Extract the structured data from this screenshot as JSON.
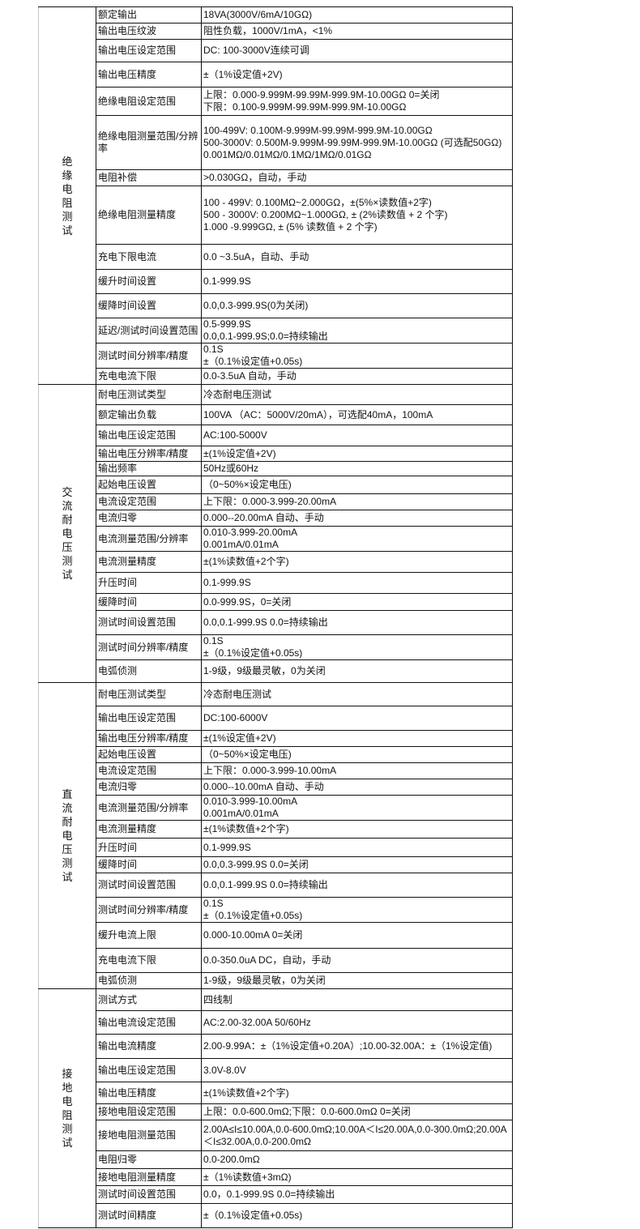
{
  "sections": [
    {
      "label": "绝缘电阻测试",
      "rows": [
        {
          "name": "额定输出",
          "value": "18VA(3000V/6mA/10GΩ)"
        },
        {
          "name": "输出电压纹波",
          "value": "阻性负载，1000V/1mA，<1%"
        },
        {
          "name": "输出电压设定范围",
          "value": "DC: 100-3000V连续可调"
        },
        {
          "name": "输出电压精度",
          "value": "±（1%设定值+2V)"
        },
        {
          "name": "绝缘电阻设定范围",
          "value": "上限：0.000-9.999M-99.99M-999.9M-10.00GΩ 0=关闭\n下限：0.100-9.999M-99.99M-999.9M-10.00GΩ"
        },
        {
          "name": "绝缘电阻测量范围/分辨率",
          "value": "100-499V: 0.100M-9.999M-99.99M-999.9M-10.00GΩ\n500-3000V: 0.500M-9.999M-99.99M-999.9M-10.00GΩ (可选配50GΩ)\n0.001MΩ/0.01MΩ/0.1MΩ/1MΩ/0.01GΩ"
        },
        {
          "name": "电阻补偿",
          "value": ">0.030GΩ，自动，手动"
        },
        {
          "name": "绝缘电阻测量精度",
          "value": "100 - 499V: 0.100MΩ~2.000GΩ，±(5%×读数值+2字)\n500 - 3000V: 0.200MΩ~1.000GΩ, ± (2%读数值 + 2 个字)\n 1.000 -9.999GΩ, ± (5% 读数值 + 2 个字)"
        },
        {
          "name": "充电下限电流",
          "value": "0.0 ~3.5uA，自动、手动"
        },
        {
          "name": "缓升时间设置",
          "value": "0.1-999.9S"
        },
        {
          "name": "缓降时间设置",
          "value": "0.0,0.3-999.9S(0为关闭)"
        },
        {
          "name": "延迟/测试时间设置范围",
          "value": "0.5-999.9S\n0.0,0.1-999.9S;0.0=持续输出"
        },
        {
          "name": "测试时间分辨率/精度",
          "value": "0.1S\n±（0.1%设定值+0.05s)"
        },
        {
          "name": "充电电流下限",
          "value": "0.0-3.5uA 自动，手动"
        }
      ]
    },
    {
      "label": "交流耐电压测试",
      "rows": [
        {
          "name": "耐电压测试类型",
          "value": "冷态耐电压测试"
        },
        {
          "name": "额定输出负载",
          "value": "100VA （AC：5000V/20mA），可选配40mA，100mA"
        },
        {
          "name": "输出电压设定范围",
          "value": "AC:100-5000V"
        },
        {
          "name": "输出电压分辨率/精度",
          "value": "±(1%设定值+2V)"
        },
        {
          "name": "输出频率",
          "value": " 50Hz或60Hz"
        },
        {
          "name": "起始电压设置",
          "value": "（0~50%×设定电压)"
        },
        {
          "name": "电流设定范围",
          "value": "上下限：0.000-3.999-20.00mA"
        },
        {
          "name": "电流归零",
          "value": "0.000--20.00mA 自动、手动"
        },
        {
          "name": "电流测量范围/分辨率",
          "value": "0.010-3.999-20.00mA\n0.001mA/0.01mA"
        },
        {
          "name": "电流测量精度",
          "value": "±(1%读数值+2个字)"
        },
        {
          "name": "升压时间",
          "value": "0.1-999.9S"
        },
        {
          "name": "缓降时间",
          "value": "0.0-999.9S，0=关闭"
        },
        {
          "name": "测试时间设置范围",
          "value": "0.0,0.1-999.9S   0.0=持续输出"
        },
        {
          "name": "测试时间分辨率/精度",
          "value": "0.1S\n±（0.1%设定值+0.05s)"
        },
        {
          "name": "电弧侦测",
          "value": "1-9级，9级最灵敏，0为关闭"
        }
      ]
    },
    {
      "label": "直流耐电压测试",
      "rows": [
        {
          "name": "耐电压测试类型",
          "value": "冷态耐电压测试"
        },
        {
          "name": "输出电压设定范围",
          "value": "DC:100-6000V"
        },
        {
          "name": "输出电压分辨率/精度",
          "value": "±(1%设定值+2V)"
        },
        {
          "name": "起始电压设置",
          "value": "（0~50%×设定电压)"
        },
        {
          "name": "电流设定范围",
          "value": "上下限：0.000-3.999-10.00mA"
        },
        {
          "name": "电流归零",
          "value": "0.000--10.00mA 自动、手动"
        },
        {
          "name": "电流测量范围/分辨率",
          "value": "0.010-3.999-10.00mA\n0.001mA/0.01mA"
        },
        {
          "name": "电流测量精度",
          "value": "±(1%读数值+2个字)"
        },
        {
          "name": "升压时间",
          "value": "0.1-999.9S"
        },
        {
          "name": "缓降时间",
          "value": "0.0,0.3-999.9S      0.0=关闭"
        },
        {
          "name": "测试时间设置范围",
          "value": "0.0,0.1-999.9S   0.0=持续输出"
        },
        {
          "name": "测试时间分辨率/精度",
          "value": "0.1S\n±（0.1%设定值+0.05s)"
        },
        {
          "name": "缓升电流上限",
          "value": "0.000-10.00mA  0=关闭"
        },
        {
          "name": "充电电流下限",
          "value": "0.0-350.0uA DC，自动，手动"
        },
        {
          "name": "电弧侦测",
          "value": "1-9级，9级最灵敏，0为关闭"
        }
      ]
    },
    {
      "label": "接地电阻测试",
      "rows": [
        {
          "name": "测试方式",
          "value": "四线制"
        },
        {
          "name": "输出电流设定范围",
          "value": "AC:2.00-32.00A 50/60Hz"
        },
        {
          "name": "输出电流精度",
          "value": "2.00-9.99A：±（1%设定值+0.20A）;10.00-32.00A：±（1%设定值)"
        },
        {
          "name": "输出电压设定范围",
          "value": "3.0V-8.0V"
        },
        {
          "name": "输出电压精度",
          "value": "±(1%读数值+2个字)"
        },
        {
          "name": "接地电阻设定范围",
          "value": "上限：0.0-600.0mΩ;下限：0.0-600.0mΩ     0=关闭"
        },
        {
          "name": "接地电阻测量范围",
          "value": "2.00A≤I≤10.00A,0.0-600.0mΩ;10.00A＜I≤20.00A,0.0-300.0mΩ;20.00A\n＜I≤32.00A,0.0-200.0mΩ"
        },
        {
          "name": "电阻归零",
          "value": "0.0-200.0mΩ"
        },
        {
          "name": "接地电阻测量精度",
          "value": "±（1%读数值+3mΩ)"
        },
        {
          "name": "测试时间设置范围",
          "value": "0.0，0.1-999.9S   0.0=持续输出"
        },
        {
          "name": "测试时间精度",
          "value": "±（0.1%设定值+0.05s)"
        }
      ]
    }
  ]
}
